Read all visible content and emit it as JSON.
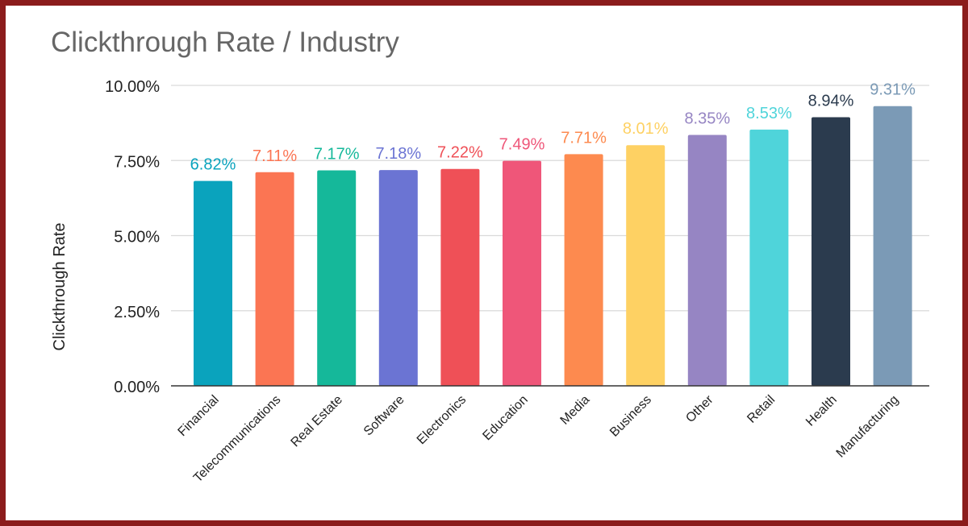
{
  "chart_data": {
    "type": "bar",
    "title": "Clickthrough Rate / Industry",
    "xlabel": "",
    "ylabel": "Clickthrough Rate",
    "ylim": [
      0,
      10
    ],
    "yticks": [
      0,
      2.5,
      5,
      7.5,
      10
    ],
    "ytick_labels": [
      "0.00%",
      "2.50%",
      "5.00%",
      "7.50%",
      "10.00%"
    ],
    "grid": true,
    "legend": "none",
    "categories": [
      "Financial",
      "Telecommunications",
      "Real Estate",
      "Software",
      "Electronics",
      "Education",
      "Media",
      "Business",
      "Other",
      "Retail",
      "Health",
      "Manufacturing"
    ],
    "values": [
      6.82,
      7.11,
      7.17,
      7.18,
      7.22,
      7.49,
      7.71,
      8.01,
      8.35,
      8.53,
      8.94,
      9.31
    ],
    "data_labels": [
      "6.82%",
      "7.11%",
      "7.17%",
      "7.18%",
      "7.22%",
      "7.49%",
      "7.71%",
      "8.01%",
      "8.35%",
      "8.53%",
      "8.94%",
      "9.31%"
    ],
    "colors": [
      "#0aa3bd",
      "#fb7553",
      "#15b89a",
      "#6b74d3",
      "#ef5057",
      "#ef5679",
      "#fd8a4f",
      "#fed163",
      "#9685c3",
      "#4fd4da",
      "#2b3b4e",
      "#7b9ab6"
    ]
  }
}
